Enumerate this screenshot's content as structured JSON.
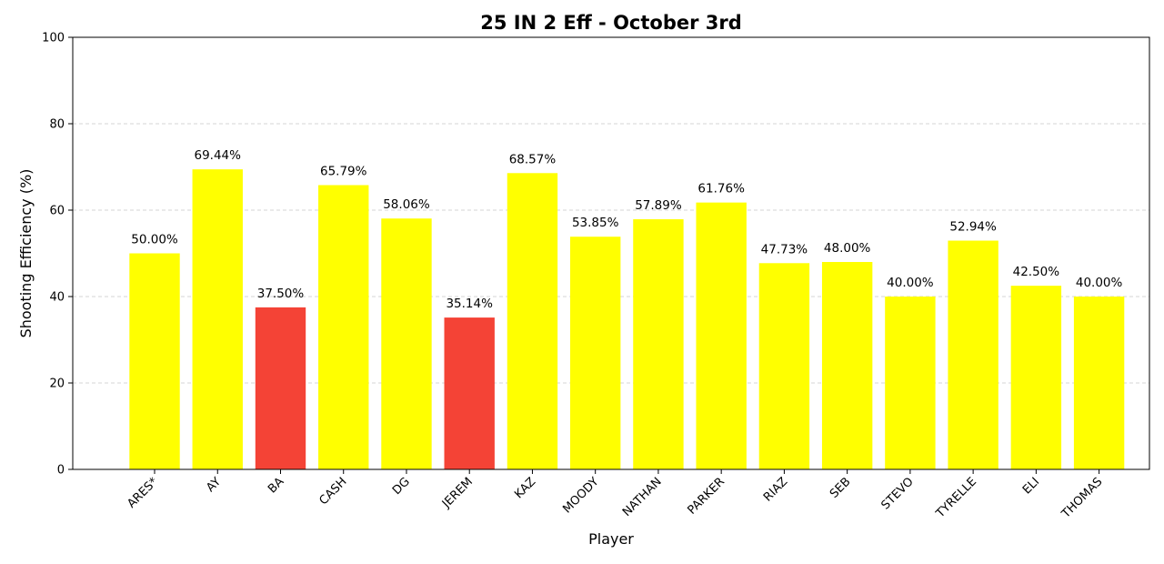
{
  "chart_data": {
    "type": "bar",
    "title": "25 IN 2 Eff - October 3rd",
    "xlabel": "Player",
    "ylabel": "Shooting Efficiency (%)",
    "ylim": [
      0,
      100
    ],
    "yticks": [
      0,
      20,
      40,
      60,
      80,
      100
    ],
    "grid": "y-dashed",
    "categories": [
      "ARES*",
      "AY",
      "BA",
      "CASH",
      "DG",
      "JEREM",
      "KAZ",
      "MOODY",
      "NATHAN",
      "PARKER",
      "RIAZ",
      "SEB",
      "STEVO",
      "TYRELLE",
      "ELI",
      "THOMAS"
    ],
    "values": [
      50.0,
      69.44,
      37.5,
      65.79,
      58.06,
      35.14,
      68.57,
      53.85,
      57.89,
      61.76,
      47.73,
      48.0,
      40.0,
      52.94,
      42.5,
      40.0
    ],
    "labels": [
      "50.00%",
      "69.44%",
      "37.50%",
      "65.79%",
      "58.06%",
      "35.14%",
      "68.57%",
      "53.85%",
      "57.89%",
      "61.76%",
      "47.73%",
      "48.00%",
      "40.00%",
      "52.94%",
      "42.50%",
      "40.00%"
    ],
    "colors": [
      "#ffff00",
      "#ffff00",
      "#f44336",
      "#ffff00",
      "#ffff00",
      "#f44336",
      "#ffff00",
      "#ffff00",
      "#ffff00",
      "#ffff00",
      "#ffff00",
      "#ffff00",
      "#ffff00",
      "#ffff00",
      "#ffff00",
      "#ffff00"
    ]
  }
}
